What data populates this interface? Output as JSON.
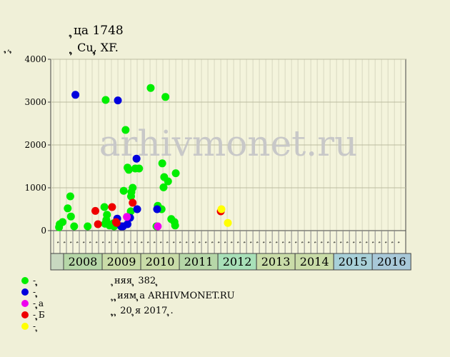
{
  "title_line1": "ຸ‌ца 1748",
  "title_line2": "ຸ‌ຸ Cu,ຸ‌ຸ XF.",
  "y_unit": "ຸ‌ຸ, ຸ‌ຸ",
  "watermark": "arhivmonet.ru",
  "footer": {
    "line1": "ຸ‌няя ຸ‌ 382 ຸ‌",
    "line2": "ຸ ຸ‌ຸиям ຸ‌а ARHIVMONET.RU",
    "line3": "ຸ‌ຸ ຸ 20 ຸ‌я 2017 ຸ‌."
  },
  "legend": [
    {
      "label": "- ຸ‌ຸ",
      "color": "#00ee00"
    },
    {
      "label": "- ຸ‌ຸ",
      "color": "#0000dd"
    },
    {
      "label": "- ຸ‌ຸа",
      "color": "#ee00ee"
    },
    {
      "label": "- ຸ‌ຸ‌Б",
      "color": "#ee0000"
    },
    {
      "label": "- ຸ‌",
      "color": "#ffff00"
    }
  ],
  "chart_data": {
    "type": "scatter",
    "ylim": [
      0,
      4000
    ],
    "yticks": [
      0,
      1000,
      2000,
      3000,
      4000
    ],
    "grid": true,
    "months_per_year": 6,
    "month_labels": [
      "ຸ‌",
      "ຸ‌",
      "ຸ‌",
      "ຸ‌",
      "ຸ‌",
      "ຸ‌",
      "ຸ‌",
      "ຸ‌",
      "ຸ‌",
      "ຸ‌",
      "ຸ‌",
      "ຸ‌",
      "ຸ‌",
      "ຸ‌",
      "ຸ‌",
      "ຸ‌",
      "ຸ‌",
      "ຸ‌",
      "ຸ‌",
      "ຸ‌",
      "ຸ‌",
      "ຸ‌",
      "ຸ‌",
      "ຸ‌",
      "ຸ‌",
      "ຸ‌",
      "ຸ‌",
      "ຸ‌",
      "ຸ‌",
      "ຸ‌",
      "ຸ‌",
      "ຸ‌",
      "ຸ‌",
      "ຸ‌",
      "ຸ‌",
      "ຸ‌",
      "ຸ‌",
      "ຸ‌",
      "ຸ‌",
      "ຸ‌",
      "ຸ‌",
      "ຸ‌",
      "ຸ‌",
      "ຸ‌",
      "ຸ‌",
      "ຸ‌",
      "ຸ‌",
      "ຸ‌",
      "ຸ‌",
      "ຸ‌",
      "ຸ‌",
      "ຸ‌",
      "ຸ‌",
      "ຸ‌",
      "ຸ‌",
      "ຸ‌"
    ],
    "years": [
      {
        "label": "2008",
        "color": "#b6d7a8"
      },
      {
        "label": "2009",
        "color": "#c9dca8"
      },
      {
        "label": "2010",
        "color": "#c9dca8"
      },
      {
        "label": "2011",
        "color": "#b6d7a8"
      },
      {
        "label": "2012",
        "color": "#a8e0b8"
      },
      {
        "label": "2013",
        "color": "#c9dca8"
      },
      {
        "label": "2014",
        "color": "#c9dca8"
      },
      {
        "label": "2015",
        "color": "#a8d0d8"
      },
      {
        "label": "2016",
        "color": "#a8c8d8"
      }
    ],
    "series": [
      {
        "name": "- ຸ‌ຸ",
        "color": "#00ee00",
        "points": [
          [
            0.35,
            80
          ],
          [
            0.45,
            150
          ],
          [
            0.9,
            200
          ],
          [
            1.7,
            520
          ],
          [
            2.1,
            800
          ],
          [
            2.2,
            330
          ],
          [
            2.7,
            100
          ],
          [
            4.8,
            100
          ],
          [
            7.4,
            550
          ],
          [
            7.5,
            160
          ],
          [
            7.6,
            3050
          ],
          [
            7.7,
            250
          ],
          [
            7.8,
            370
          ],
          [
            8.2,
            120
          ],
          [
            8.3,
            140
          ],
          [
            8.8,
            170
          ],
          [
            8.9,
            100
          ],
          [
            9.0,
            120
          ],
          [
            10.4,
            930
          ],
          [
            10.7,
            2350
          ],
          [
            11.0,
            1470
          ],
          [
            11.2,
            1420
          ],
          [
            11.5,
            450
          ],
          [
            11.55,
            800
          ],
          [
            11.6,
            900
          ],
          [
            11.8,
            1000
          ],
          [
            12.2,
            1450
          ],
          [
            12.8,
            1450
          ],
          [
            14.6,
            3330
          ],
          [
            15.5,
            100
          ],
          [
            15.7,
            580
          ],
          [
            16.3,
            500
          ],
          [
            16.4,
            1570
          ],
          [
            16.6,
            1010
          ],
          [
            16.7,
            1250
          ],
          [
            16.9,
            3120
          ],
          [
            17.3,
            1150
          ],
          [
            17.8,
            270
          ],
          [
            18.3,
            200
          ],
          [
            18.4,
            120
          ],
          [
            18.5,
            1340
          ]
        ]
      },
      {
        "name": "- ຸ‌ຸ",
        "color": "#0000dd",
        "points": [
          [
            2.9,
            3170
          ],
          [
            9.4,
            280
          ],
          [
            9.5,
            3040
          ],
          [
            10.0,
            100
          ],
          [
            10.3,
            100
          ],
          [
            11.0,
            150
          ],
          [
            11.4,
            300
          ],
          [
            12.4,
            1680
          ],
          [
            12.5,
            500
          ],
          [
            15.6,
            500
          ]
        ]
      },
      {
        "name": "- ຸ‌ຸа",
        "color": "#ee00ee",
        "points": [
          [
            10.9,
            320
          ],
          [
            15.7,
            100
          ]
        ]
      },
      {
        "name": "- ຸ‌ຸ‌Б",
        "color": "#ee0000",
        "points": [
          [
            6.0,
            460
          ],
          [
            6.4,
            150
          ],
          [
            8.6,
            550
          ],
          [
            9.2,
            200
          ],
          [
            9.3,
            180
          ],
          [
            11.8,
            650
          ],
          [
            25.5,
            450
          ]
        ]
      },
      {
        "name": "- ຸ‌",
        "color": "#ffff00",
        "points": [
          [
            25.6,
            500
          ],
          [
            26.6,
            180
          ]
        ]
      }
    ]
  }
}
